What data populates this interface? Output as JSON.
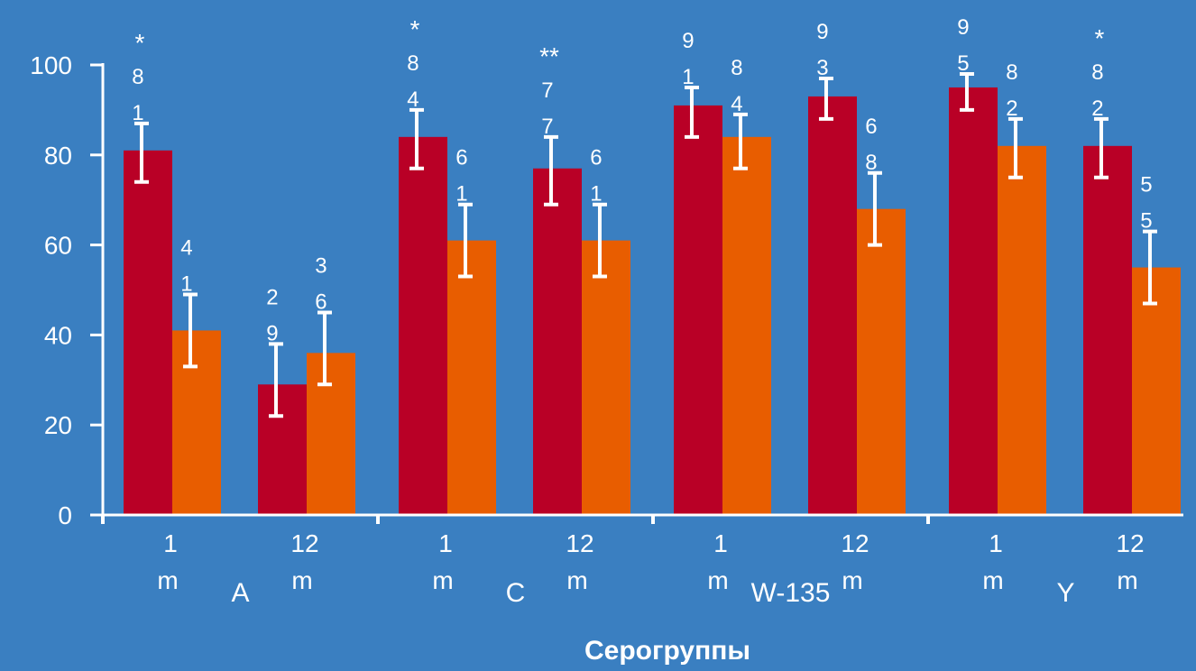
{
  "colors": {
    "background": "#3a7fc1",
    "series_1": "#b90026",
    "series_2": "#e85d00",
    "error_bars": "#ffffff",
    "text": "#ffffff"
  },
  "chart_data": {
    "type": "bar",
    "xlabel": "Серогруппы",
    "ylabel": "",
    "ylim": [
      0,
      100
    ],
    "yticks": [
      0,
      20,
      40,
      60,
      80,
      100
    ],
    "grid": false,
    "legend": "none",
    "groups": [
      {
        "label": "A",
        "subgroups": [
          {
            "label": "1 m",
            "values": [
              81,
              41
            ],
            "errors": [
              [
                74,
                87
              ],
              [
                33,
                49
              ]
            ],
            "labels": [
              "81",
              "41"
            ],
            "sig": [
              "*",
              ""
            ]
          },
          {
            "label": "12 m",
            "values": [
              29,
              36
            ],
            "errors": [
              [
                22,
                38
              ],
              [
                29,
                45
              ]
            ],
            "labels": [
              "29",
              "36"
            ],
            "sig": [
              "",
              ""
            ]
          }
        ]
      },
      {
        "label": "C",
        "subgroups": [
          {
            "label": "1 m",
            "values": [
              84,
              61
            ],
            "errors": [
              [
                77,
                90
              ],
              [
                53,
                69
              ]
            ],
            "labels": [
              "84",
              "61"
            ],
            "sig": [
              "*",
              ""
            ]
          },
          {
            "label": "12 m",
            "values": [
              77,
              61
            ],
            "errors": [
              [
                69,
                84
              ],
              [
                53,
                69
              ]
            ],
            "labels": [
              "77",
              "61"
            ],
            "sig": [
              "**",
              ""
            ]
          }
        ]
      },
      {
        "label": "W-135",
        "subgroups": [
          {
            "label": "1 m",
            "values": [
              91,
              84
            ],
            "errors": [
              [
                84,
                95
              ],
              [
                77,
                89
              ]
            ],
            "labels": [
              "91",
              "84"
            ],
            "sig": [
              "",
              ""
            ]
          },
          {
            "label": "12 m",
            "values": [
              93,
              68
            ],
            "errors": [
              [
                88,
                97
              ],
              [
                60,
                76
              ]
            ],
            "labels": [
              "93",
              "68"
            ],
            "sig": [
              "*",
              ""
            ]
          }
        ]
      },
      {
        "label": "Y",
        "subgroups": [
          {
            "label": "1 m",
            "values": [
              95,
              82
            ],
            "errors": [
              [
                90,
                98
              ],
              [
                75,
                88
              ]
            ],
            "labels": [
              "95",
              "82"
            ],
            "sig": [
              "*",
              ""
            ]
          },
          {
            "label": "12 m",
            "values": [
              82,
              55
            ],
            "errors": [
              [
                75,
                88
              ],
              [
                47,
                63
              ]
            ],
            "labels": [
              "82",
              "55"
            ],
            "sig": [
              "*",
              ""
            ]
          }
        ]
      }
    ]
  }
}
